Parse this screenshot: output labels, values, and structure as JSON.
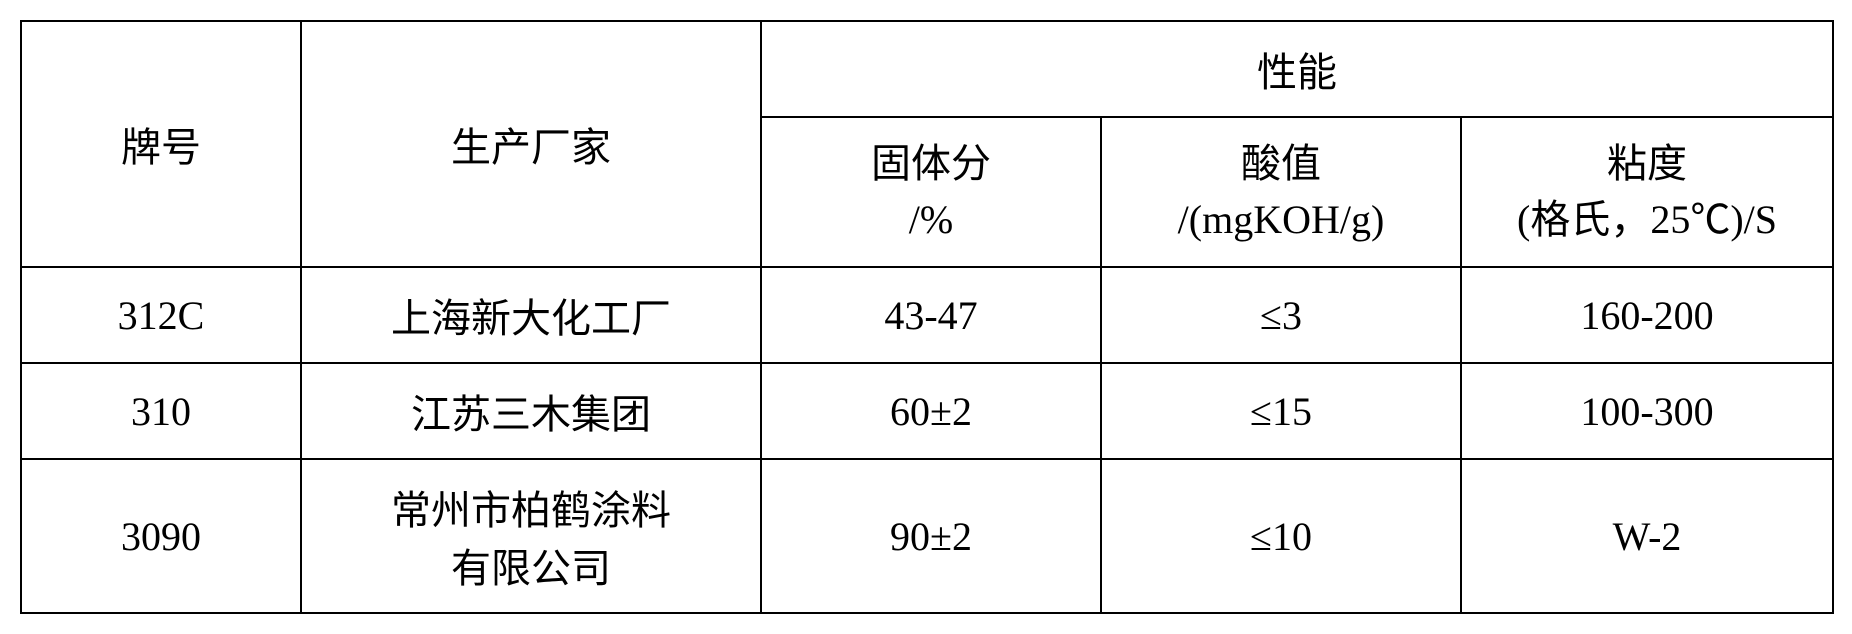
{
  "table": {
    "type": "table",
    "background_color": "#ffffff",
    "border_color": "#000000",
    "border_width": 2,
    "font_family": "SimSun",
    "font_size": 40,
    "text_color": "#000000",
    "headers": {
      "col1": "牌号",
      "col2": "生产厂家",
      "performance_group": "性能",
      "col3_line1": "固体分",
      "col3_line2": "/%",
      "col4_line1": "酸值",
      "col4_line2": "/(mgKOH/g)",
      "col5_line1": "粘度",
      "col5_line2": "(格氏，25℃)/S"
    },
    "rows": [
      {
        "brand": "312C",
        "manufacturer": "上海新大化工厂",
        "solid_content": "43-47",
        "acid_value": "≤3",
        "viscosity": "160-200"
      },
      {
        "brand": "310",
        "manufacturer": "江苏三木集团",
        "solid_content": "60±2",
        "acid_value": "≤15",
        "viscosity": "100-300"
      },
      {
        "brand": "3090",
        "manufacturer_line1": "常州市柏鹤涂料",
        "manufacturer_line2": "有限公司",
        "solid_content": "90±2",
        "acid_value": "≤10",
        "viscosity": "W-2"
      }
    ],
    "column_widths": {
      "col1": 280,
      "col2": 460,
      "col3": 340,
      "col4": 360,
      "col5": 372
    }
  }
}
